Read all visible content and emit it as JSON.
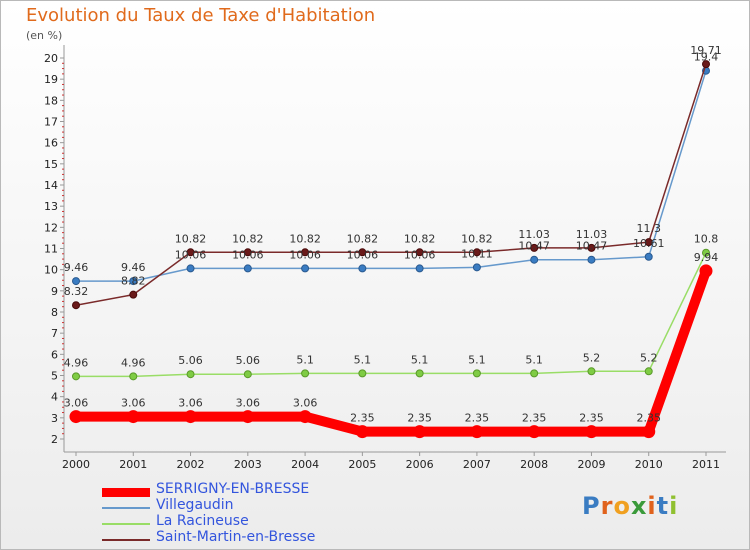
{
  "chart_data": {
    "type": "line",
    "title": "Evolution du Taux de Taxe d'Habitation",
    "ylabel": "(en %)",
    "xlabel": "",
    "categories": [
      "2000",
      "2001",
      "2002",
      "2003",
      "2004",
      "2005",
      "2006",
      "2007",
      "2008",
      "2009",
      "2010",
      "2011"
    ],
    "yticks": [
      "2",
      "3",
      "4",
      "5",
      "6",
      "7",
      "8",
      "9",
      "10",
      "11",
      "12",
      "13",
      "14",
      "15",
      "16",
      "17",
      "18",
      "19",
      "20"
    ],
    "ylim": [
      2,
      20
    ],
    "grid": false,
    "legend_position": "bottom-left",
    "series": [
      {
        "name": "SERRIGNY-EN-BRESSE",
        "color": "#ff0000",
        "values": [
          3.06,
          3.06,
          3.06,
          3.06,
          3.06,
          2.35,
          2.35,
          2.35,
          2.35,
          2.35,
          2.35,
          9.94
        ],
        "labels": [
          "3.06",
          "3.06",
          "3.06",
          "3.06",
          "3.06",
          "2.35",
          "2.35",
          "2.35",
          "2.35",
          "2.35",
          "2.35",
          "9.94"
        ]
      },
      {
        "name": "Villegaudin",
        "color": "#6699cc",
        "values": [
          9.46,
          9.46,
          10.06,
          10.06,
          10.06,
          10.06,
          10.06,
          10.11,
          10.47,
          10.47,
          10.61,
          19.4
        ],
        "labels": [
          "9.46",
          "9.46",
          "10.06",
          "10.06",
          "10.06",
          "10.06",
          "10.06",
          "10.11",
          "10.47",
          "10.47",
          "10.61",
          "19.4"
        ]
      },
      {
        "name": "La Racineuse",
        "color": "#99dd66",
        "values": [
          4.96,
          4.96,
          5.06,
          5.06,
          5.1,
          5.1,
          5.1,
          5.1,
          5.1,
          5.2,
          5.2,
          10.8
        ],
        "labels": [
          "4.96",
          "4.96",
          "5.06",
          "5.06",
          "5.1",
          "5.1",
          "5.1",
          "5.1",
          "5.1",
          "5.2",
          "5.2",
          "10.8"
        ]
      },
      {
        "name": "Saint-Martin-en-Bresse",
        "color": "#7a2a2a",
        "values": [
          8.32,
          8.82,
          10.82,
          10.82,
          10.82,
          10.82,
          10.82,
          10.82,
          11.03,
          11.03,
          11.3,
          19.71
        ],
        "labels": [
          "8.32",
          "8.82",
          "10.82",
          "10.82",
          "10.82",
          "10.82",
          "10.82",
          "10.82",
          "11.03",
          "11.03",
          "11.3",
          "19.71"
        ]
      }
    ]
  },
  "logo": {
    "text": "Proxiti"
  }
}
